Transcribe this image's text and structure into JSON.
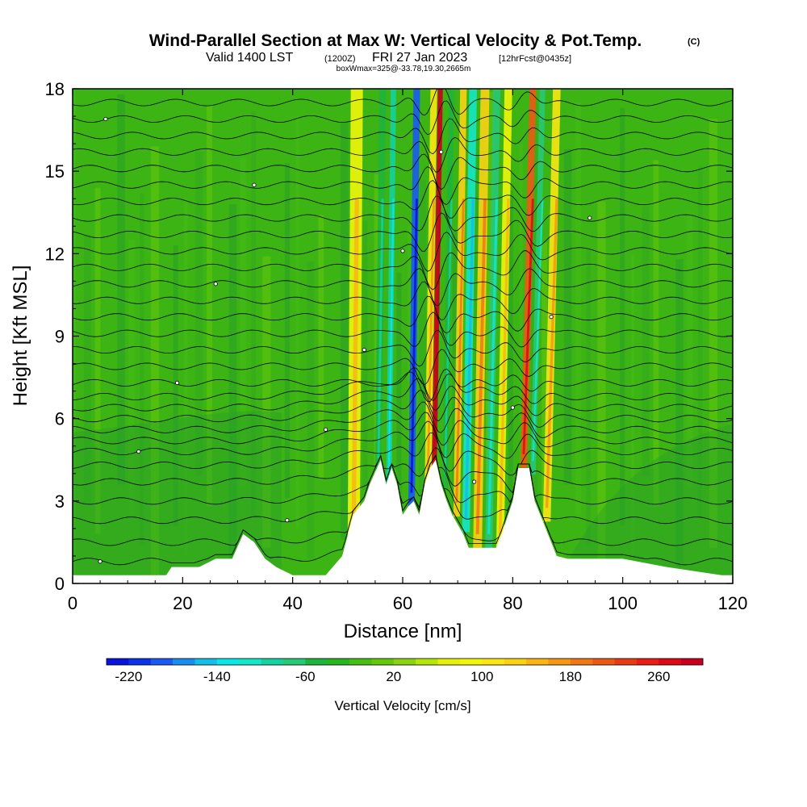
{
  "chart_data": {
    "type": "heatmap",
    "title": "Wind-Parallel Section at Max W: Vertical Velocity & Pot.Temp.",
    "title_mark": "(C)",
    "subtitle_main": "Valid 1400 LST",
    "subtitle_utc": "(1200Z)",
    "subtitle_date": "FRI 27 Jan 2023",
    "subtitle_fcst": "[12hrFcst@0435z]",
    "box_info": "boxWmax=325@-33.78,19.30,2665m",
    "xlabel": "Distance [nm]",
    "ylabel": "Height [Kft MSL]",
    "xlim": [
      0,
      120
    ],
    "ylim": [
      0,
      18
    ],
    "x_ticks": [
      0,
      20,
      40,
      60,
      80,
      100,
      120
    ],
    "y_ticks": [
      0,
      3,
      6,
      9,
      12,
      15,
      18
    ],
    "colorbar": {
      "label": "Vertical Velocity [cm/s]",
      "min": -240,
      "max": 300,
      "step": 20,
      "tick_values": [
        -220,
        -140,
        -60,
        20,
        100,
        180,
        260
      ],
      "colors": [
        "#0a14d8",
        "#0a32e6",
        "#1a5af0",
        "#1a8cf0",
        "#14bee6",
        "#0ae6e6",
        "#14e6c8",
        "#14d2a0",
        "#28c878",
        "#1eb43c",
        "#28b41e",
        "#46be14",
        "#64c80a",
        "#8cd214",
        "#b4e60a",
        "#e6f00a",
        "#f0f50a",
        "#fae614",
        "#fad214",
        "#fab414",
        "#f59614",
        "#f07814",
        "#eb5a14",
        "#e63c14",
        "#e61e14",
        "#dc0a14",
        "#c8001e"
      ]
    },
    "terrain": [
      {
        "x": 0,
        "h": 0.3
      },
      {
        "x": 17,
        "h": 0.3
      },
      {
        "x": 18,
        "h": 0.6
      },
      {
        "x": 23,
        "h": 0.6
      },
      {
        "x": 26,
        "h": 0.9
      },
      {
        "x": 29,
        "h": 0.9
      },
      {
        "x": 31,
        "h": 1.8
      },
      {
        "x": 33,
        "h": 1.5
      },
      {
        "x": 35,
        "h": 0.9
      },
      {
        "x": 37,
        "h": 0.6
      },
      {
        "x": 40,
        "h": 0.3
      },
      {
        "x": 46,
        "h": 0.3
      },
      {
        "x": 49,
        "h": 1.0
      },
      {
        "x": 51,
        "h": 2.5
      },
      {
        "x": 53,
        "h": 3.0
      },
      {
        "x": 54,
        "h": 3.6
      },
      {
        "x": 56,
        "h": 4.5
      },
      {
        "x": 57,
        "h": 3.6
      },
      {
        "x": 58,
        "h": 4.2
      },
      {
        "x": 59,
        "h": 3.6
      },
      {
        "x": 60,
        "h": 2.5
      },
      {
        "x": 61,
        "h": 2.8
      },
      {
        "x": 62,
        "h": 3.0
      },
      {
        "x": 63,
        "h": 2.5
      },
      {
        "x": 64,
        "h": 3.6
      },
      {
        "x": 65,
        "h": 4.2
      },
      {
        "x": 66,
        "h": 4.5
      },
      {
        "x": 67,
        "h": 3.6
      },
      {
        "x": 68,
        "h": 3.0
      },
      {
        "x": 69,
        "h": 2.5
      },
      {
        "x": 71,
        "h": 1.8
      },
      {
        "x": 72,
        "h": 1.3
      },
      {
        "x": 77,
        "h": 1.3
      },
      {
        "x": 78,
        "h": 1.8
      },
      {
        "x": 80,
        "h": 3.0
      },
      {
        "x": 81,
        "h": 4.2
      },
      {
        "x": 83,
        "h": 4.2
      },
      {
        "x": 84,
        "h": 3.0
      },
      {
        "x": 86,
        "h": 2.0
      },
      {
        "x": 88,
        "h": 1.0
      },
      {
        "x": 90,
        "h": 0.9
      },
      {
        "x": 100,
        "h": 0.9
      },
      {
        "x": 108,
        "h": 0.6
      },
      {
        "x": 118,
        "h": 0.3
      },
      {
        "x": 120,
        "h": 0.3
      }
    ],
    "velocity_bands": [
      {
        "x": 50,
        "w": 2.2,
        "value": 90
      },
      {
        "x": 55,
        "w": 1.2,
        "value": -50
      },
      {
        "x": 57,
        "w": 1.0,
        "value": -90
      },
      {
        "x": 61,
        "w": 1.2,
        "value": -200
      },
      {
        "x": 64,
        "w": 1.2,
        "value": 110
      },
      {
        "x": 65.3,
        "w": 0.9,
        "value": 300
      },
      {
        "x": 67.2,
        "w": 1.0,
        "value": -60
      },
      {
        "x": 69.2,
        "w": 1.2,
        "value": 130
      },
      {
        "x": 70.8,
        "w": 1.4,
        "value": -120
      },
      {
        "x": 72.8,
        "w": 1.6,
        "value": 120
      },
      {
        "x": 75,
        "w": 1.3,
        "value": -70
      },
      {
        "x": 77,
        "w": 1.4,
        "value": 90
      },
      {
        "x": 81.4,
        "w": 1.2,
        "value": 210
      },
      {
        "x": 83.2,
        "w": 1.0,
        "value": -80
      },
      {
        "x": 85.5,
        "w": 1.4,
        "value": 100
      }
    ],
    "theta_levels": [
      0.8,
      1.5,
      2.3,
      3.0,
      3.7,
      4.3,
      4.8,
      5.2,
      5.6,
      6.0,
      6.4,
      6.8,
      7.3,
      7.9,
      8.5,
      9.1,
      9.7,
      10.3,
      10.9,
      11.5,
      12.1,
      12.7,
      13.3,
      13.9,
      14.5,
      15.1,
      15.7,
      16.3,
      16.9,
      17.5
    ]
  }
}
